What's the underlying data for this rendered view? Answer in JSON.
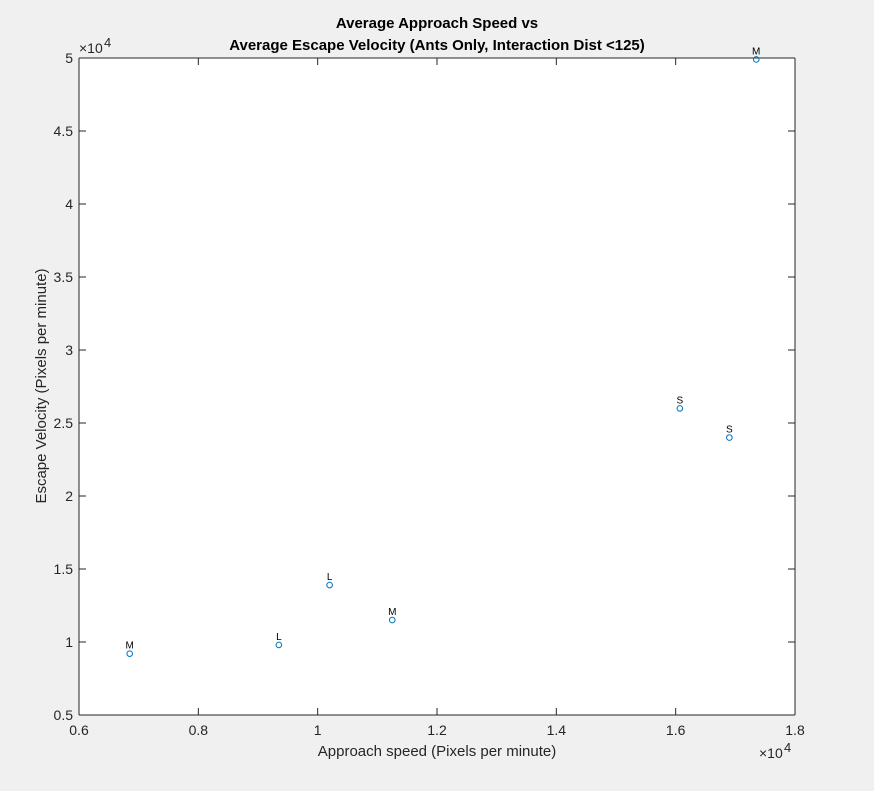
{
  "chart_data": {
    "type": "scatter",
    "title": "Average Approach Speed vs",
    "subtitle": "Average Escape Velocity (Ants Only, Interaction Dist <125)",
    "xlabel": "Approach speed  (Pixels per minute)",
    "ylabel": "Escape Velocity (Pixels per minute)",
    "x_scale_label": "×10",
    "x_scale_exponent": "4",
    "y_scale_label": "×10",
    "y_scale_exponent": "4",
    "xlim": [
      6000,
      18000
    ],
    "ylim": [
      5000,
      50000
    ],
    "x_ticks": [
      6000,
      8000,
      10000,
      12000,
      14000,
      16000,
      18000
    ],
    "x_tick_labels": [
      "0.6",
      "0.8",
      "1",
      "1.2",
      "1.4",
      "1.6",
      "1.8"
    ],
    "y_ticks": [
      5000,
      10000,
      15000,
      20000,
      25000,
      30000,
      35000,
      40000,
      45000,
      50000
    ],
    "y_tick_labels": [
      "0.5",
      "1",
      "1.5",
      "2",
      "2.5",
      "3",
      "3.5",
      "4",
      "4.5",
      "5"
    ],
    "grid": false,
    "marker": "o",
    "marker_color": "#0072BD",
    "points": [
      {
        "x": 6850,
        "y": 9200,
        "label": "M"
      },
      {
        "x": 9350,
        "y": 9800,
        "label": "L"
      },
      {
        "x": 10200,
        "y": 13900,
        "label": "L"
      },
      {
        "x": 11250,
        "y": 11500,
        "label": "M"
      },
      {
        "x": 16070,
        "y": 26000,
        "label": "S"
      },
      {
        "x": 16900,
        "y": 24000,
        "label": "S"
      },
      {
        "x": 17350,
        "y": 49900,
        "label": "M"
      }
    ]
  }
}
